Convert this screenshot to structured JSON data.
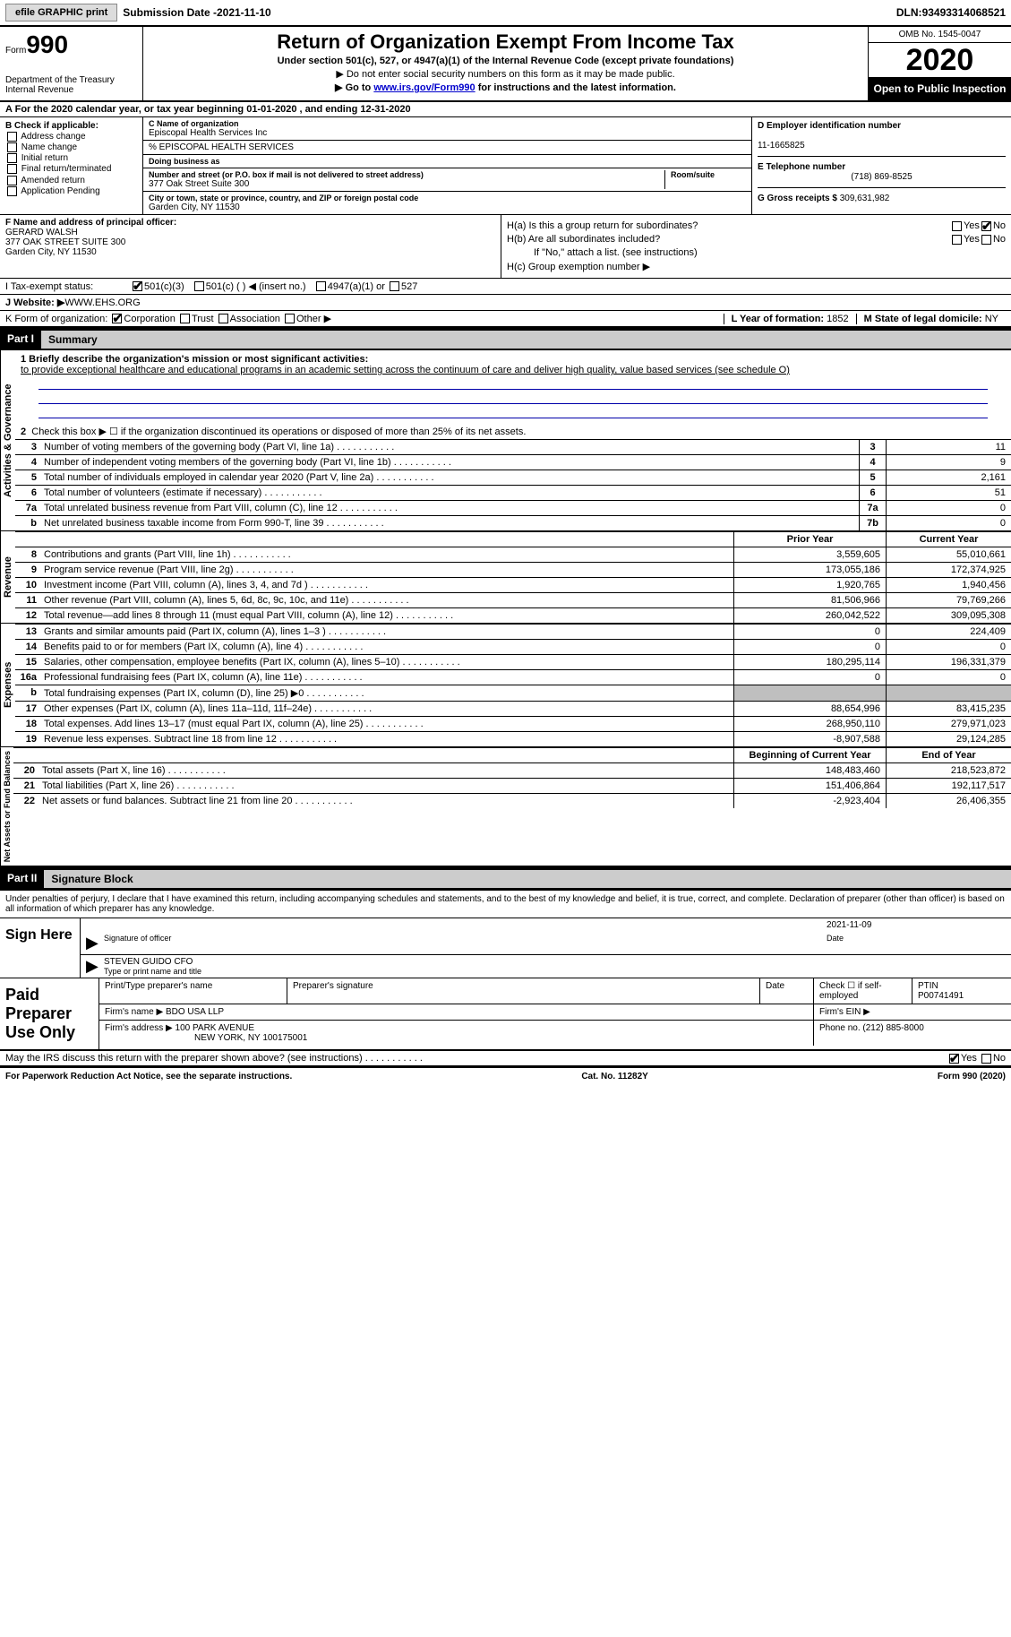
{
  "topbar": {
    "efile": "efile GRAPHIC print",
    "submission_label": "Submission Date - ",
    "submission_date": "2021-11-10",
    "dln_label": "DLN: ",
    "dln": "93493314068521"
  },
  "header": {
    "form_label": "Form",
    "form_number": "990",
    "dept": "Department of the Treasury",
    "irs": "Internal Revenue",
    "title": "Return of Organization Exempt From Income Tax",
    "subtitle": "Under section 501(c), 527, or 4947(a)(1) of the Internal Revenue Code (except private foundations)",
    "line1": "▶ Do not enter social security numbers on this form as it may be made public.",
    "line2_prefix": "▶ Go to ",
    "line2_link": "www.irs.gov/Form990",
    "line2_suffix": " for instructions and the latest information.",
    "omb": "OMB No. 1545-0047",
    "year": "2020",
    "open": "Open to Public Inspection"
  },
  "lineA": "For the 2020 calendar year, or tax year beginning 01-01-2020   , and ending 12-31-2020",
  "boxB": {
    "title": "B Check if applicable:",
    "opts": [
      "Address change",
      "Name change",
      "Initial return",
      "Final return/terminated",
      "Amended return",
      "Application Pending"
    ]
  },
  "boxC": {
    "lbl_name": "C Name of organization",
    "org_name": "Episcopal Health Services Inc",
    "care_of": "% EPISCOPAL HEALTH SERVICES",
    "dba_lbl": "Doing business as",
    "dba": "",
    "addr_lbl": "Number and street (or P.O. box if mail is not delivered to street address)",
    "room_lbl": "Room/suite",
    "addr": "377 Oak Street Suite 300",
    "city_lbl": "City or town, state or province, country, and ZIP or foreign postal code",
    "city": "Garden City, NY  11530"
  },
  "boxD": {
    "lbl": "D Employer identification number",
    "ein": "11-1665825"
  },
  "boxE": {
    "lbl": "E Telephone number",
    "phone": "(718) 869-8525"
  },
  "boxG": {
    "lbl": "G Gross receipts $ ",
    "amount": "309,631,982"
  },
  "boxF": {
    "lbl": "F  Name and address of principal officer:",
    "name": "GERARD WALSH",
    "addr1": "377 OAK STREET SUITE 300",
    "addr2": "Garden City, NY  11530"
  },
  "boxH": {
    "ha": "H(a)  Is this a group return for subordinates?",
    "ha_yes": "Yes",
    "ha_no": "No",
    "hb": "H(b)  Are all subordinates included?",
    "hb_yes": "Yes",
    "hb_no": "No",
    "hb_note": "If \"No,\" attach a list. (see instructions)",
    "hc": "H(c)  Group exemption number ▶"
  },
  "lineI": {
    "lbl": "I    Tax-exempt status:",
    "o1": "501(c)(3)",
    "o2": "501(c) (  ) ◀ (insert no.)",
    "o3": "4947(a)(1) or",
    "o4": "527"
  },
  "lineJ": {
    "lbl": "J    Website: ▶ ",
    "val": "WWW.EHS.ORG"
  },
  "lineK": {
    "lbl": "K Form of organization:",
    "o1": "Corporation",
    "o2": "Trust",
    "o3": "Association",
    "o4": "Other ▶"
  },
  "lineL": {
    "lbl": "L Year of formation: ",
    "val": "1852"
  },
  "lineM": {
    "lbl": "M State of legal domicile: ",
    "val": "NY"
  },
  "part1": {
    "hdr": "Part I",
    "title": "Summary",
    "q1_lbl": "1   Briefly describe the organization's mission or most significant activities:",
    "q1_text": "to provide exceptional healthcare and educational programs in an academic setting across the continuum of care and deliver high quality, value based services (see schedule O)",
    "q2": "Check this box ▶ ☐  if the organization discontinued its operations or disposed of more than 25% of its net assets.",
    "col_prior": "Prior Year",
    "col_current": "Current Year",
    "col_begin": "Beginning of Current Year",
    "col_end": "End of Year",
    "sections": {
      "governance": {
        "label": "Activities & Governance",
        "rows": [
          {
            "n": "3",
            "d": "Number of voting members of the governing body (Part VI, line 1a)",
            "c": "3",
            "v": "11"
          },
          {
            "n": "4",
            "d": "Number of independent voting members of the governing body (Part VI, line 1b)",
            "c": "4",
            "v": "9"
          },
          {
            "n": "5",
            "d": "Total number of individuals employed in calendar year 2020 (Part V, line 2a)",
            "c": "5",
            "v": "2,161"
          },
          {
            "n": "6",
            "d": "Total number of volunteers (estimate if necessary)",
            "c": "6",
            "v": "51"
          },
          {
            "n": "7a",
            "d": "Total unrelated business revenue from Part VIII, column (C), line 12",
            "c": "7a",
            "v": "0"
          },
          {
            "n": "b",
            "d": "Net unrelated business taxable income from Form 990-T, line 39",
            "c": "7b",
            "v": "0"
          }
        ]
      },
      "revenue": {
        "label": "Revenue",
        "rows": [
          {
            "n": "8",
            "d": "Contributions and grants (Part VIII, line 1h)",
            "p": "3,559,605",
            "c": "55,010,661"
          },
          {
            "n": "9",
            "d": "Program service revenue (Part VIII, line 2g)",
            "p": "173,055,186",
            "c": "172,374,925"
          },
          {
            "n": "10",
            "d": "Investment income (Part VIII, column (A), lines 3, 4, and 7d )",
            "p": "1,920,765",
            "c": "1,940,456"
          },
          {
            "n": "11",
            "d": "Other revenue (Part VIII, column (A), lines 5, 6d, 8c, 9c, 10c, and 11e)",
            "p": "81,506,966",
            "c": "79,769,266"
          },
          {
            "n": "12",
            "d": "Total revenue—add lines 8 through 11 (must equal Part VIII, column (A), line 12)",
            "p": "260,042,522",
            "c": "309,095,308"
          }
        ]
      },
      "expenses": {
        "label": "Expenses",
        "rows": [
          {
            "n": "13",
            "d": "Grants and similar amounts paid (Part IX, column (A), lines 1–3 )",
            "p": "0",
            "c": "224,409"
          },
          {
            "n": "14",
            "d": "Benefits paid to or for members (Part IX, column (A), line 4)",
            "p": "0",
            "c": "0"
          },
          {
            "n": "15",
            "d": "Salaries, other compensation, employee benefits (Part IX, column (A), lines 5–10)",
            "p": "180,295,114",
            "c": "196,331,379"
          },
          {
            "n": "16a",
            "d": "Professional fundraising fees (Part IX, column (A), line 11e)",
            "p": "0",
            "c": "0"
          },
          {
            "n": "b",
            "d": "Total fundraising expenses (Part IX, column (D), line 25) ▶0",
            "p": "",
            "c": "",
            "grey": true
          },
          {
            "n": "17",
            "d": "Other expenses (Part IX, column (A), lines 11a–11d, 11f–24e)",
            "p": "88,654,996",
            "c": "83,415,235"
          },
          {
            "n": "18",
            "d": "Total expenses. Add lines 13–17 (must equal Part IX, column (A), line 25)",
            "p": "268,950,110",
            "c": "279,971,023"
          },
          {
            "n": "19",
            "d": "Revenue less expenses. Subtract line 18 from line 12",
            "p": "-8,907,588",
            "c": "29,124,285"
          }
        ]
      },
      "net": {
        "label": "Net Assets or Fund Balances",
        "rows": [
          {
            "n": "20",
            "d": "Total assets (Part X, line 16)",
            "p": "148,483,460",
            "c": "218,523,872"
          },
          {
            "n": "21",
            "d": "Total liabilities (Part X, line 26)",
            "p": "151,406,864",
            "c": "192,117,517"
          },
          {
            "n": "22",
            "d": "Net assets or fund balances. Subtract line 21 from line 20",
            "p": "-2,923,404",
            "c": "26,406,355"
          }
        ]
      }
    }
  },
  "part2": {
    "hdr": "Part II",
    "title": "Signature Block",
    "penalty": "Under penalties of perjury, I declare that I have examined this return, including accompanying schedules and statements, and to the best of my knowledge and belief, it is true, correct, and complete. Declaration of preparer (other than officer) is based on all information of which preparer has any knowledge.",
    "sign_here": "Sign Here",
    "sig_officer_lbl": "Signature of officer",
    "sig_date_lbl": "Date",
    "sig_date": "2021-11-09",
    "officer_name": "STEVEN GUIDO CFO",
    "type_name_lbl": "Type or print name and title",
    "paid_prep": "Paid Preparer Use Only",
    "prep_name_lbl": "Print/Type preparer's name",
    "prep_sig_lbl": "Preparer's signature",
    "prep_date_lbl": "Date",
    "self_emp": "Check ☐ if self-employed",
    "ptin_lbl": "PTIN",
    "ptin": "P00741491",
    "firm_name_lbl": "Firm's name   ▶",
    "firm_name": "BDO USA LLP",
    "firm_ein_lbl": "Firm's EIN ▶",
    "firm_addr_lbl": "Firm's address ▶",
    "firm_addr1": "100 PARK AVENUE",
    "firm_addr2": "NEW YORK, NY  100175001",
    "firm_phone_lbl": "Phone no. ",
    "firm_phone": "(212) 885-8000",
    "discuss": "May the IRS discuss this return with the preparer shown above? (see instructions)",
    "discuss_yes": "Yes",
    "discuss_no": "No"
  },
  "footer": {
    "left": "For Paperwork Reduction Act Notice, see the separate instructions.",
    "cat": "Cat. No. 11282Y",
    "right": "Form 990 (2020)"
  }
}
